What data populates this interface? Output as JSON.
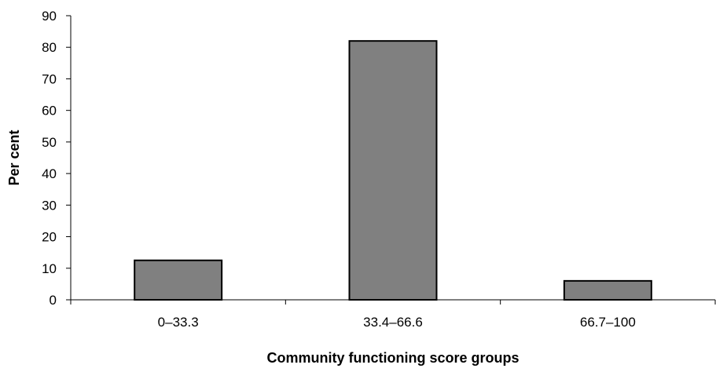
{
  "chart_data": {
    "type": "bar",
    "categories": [
      "0–33.3",
      "33.4–66.6",
      "66.7–100"
    ],
    "values": [
      12.5,
      82,
      6
    ],
    "title": "",
    "xlabel": "Community functioning score groups",
    "ylabel": "Per cent",
    "ylim": [
      0,
      90
    ],
    "yticks": [
      "0",
      "10",
      "20",
      "30",
      "40",
      "50",
      "60",
      "70",
      "80",
      "90"
    ],
    "grid": false,
    "legend": "none",
    "colors": {
      "bar_fill": "#808080",
      "bar_stroke": "#000000",
      "axis": "#000000"
    }
  }
}
